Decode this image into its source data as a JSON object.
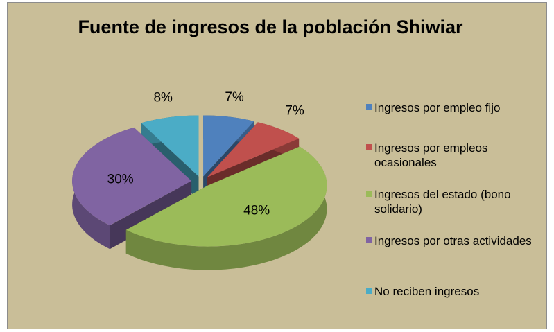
{
  "chart_data": {
    "type": "pie",
    "title": "Fuente de ingresos de la población Shiwiar",
    "categories": [
      "Ingresos por empleo fijo",
      "Ingresos por empleos ocasionales",
      "Ingresos del estado (bono solidario)",
      "Ingresos por otras actividades",
      "No reciben ingresos"
    ],
    "values": [
      7,
      7,
      48,
      30,
      8
    ],
    "value_labels": [
      "7%",
      "7%",
      "48%",
      "30%",
      "8%"
    ],
    "colors": [
      "#4f81bd",
      "#c0504d",
      "#9bbb59",
      "#8064a2",
      "#4bacc6"
    ],
    "legend": "right"
  }
}
